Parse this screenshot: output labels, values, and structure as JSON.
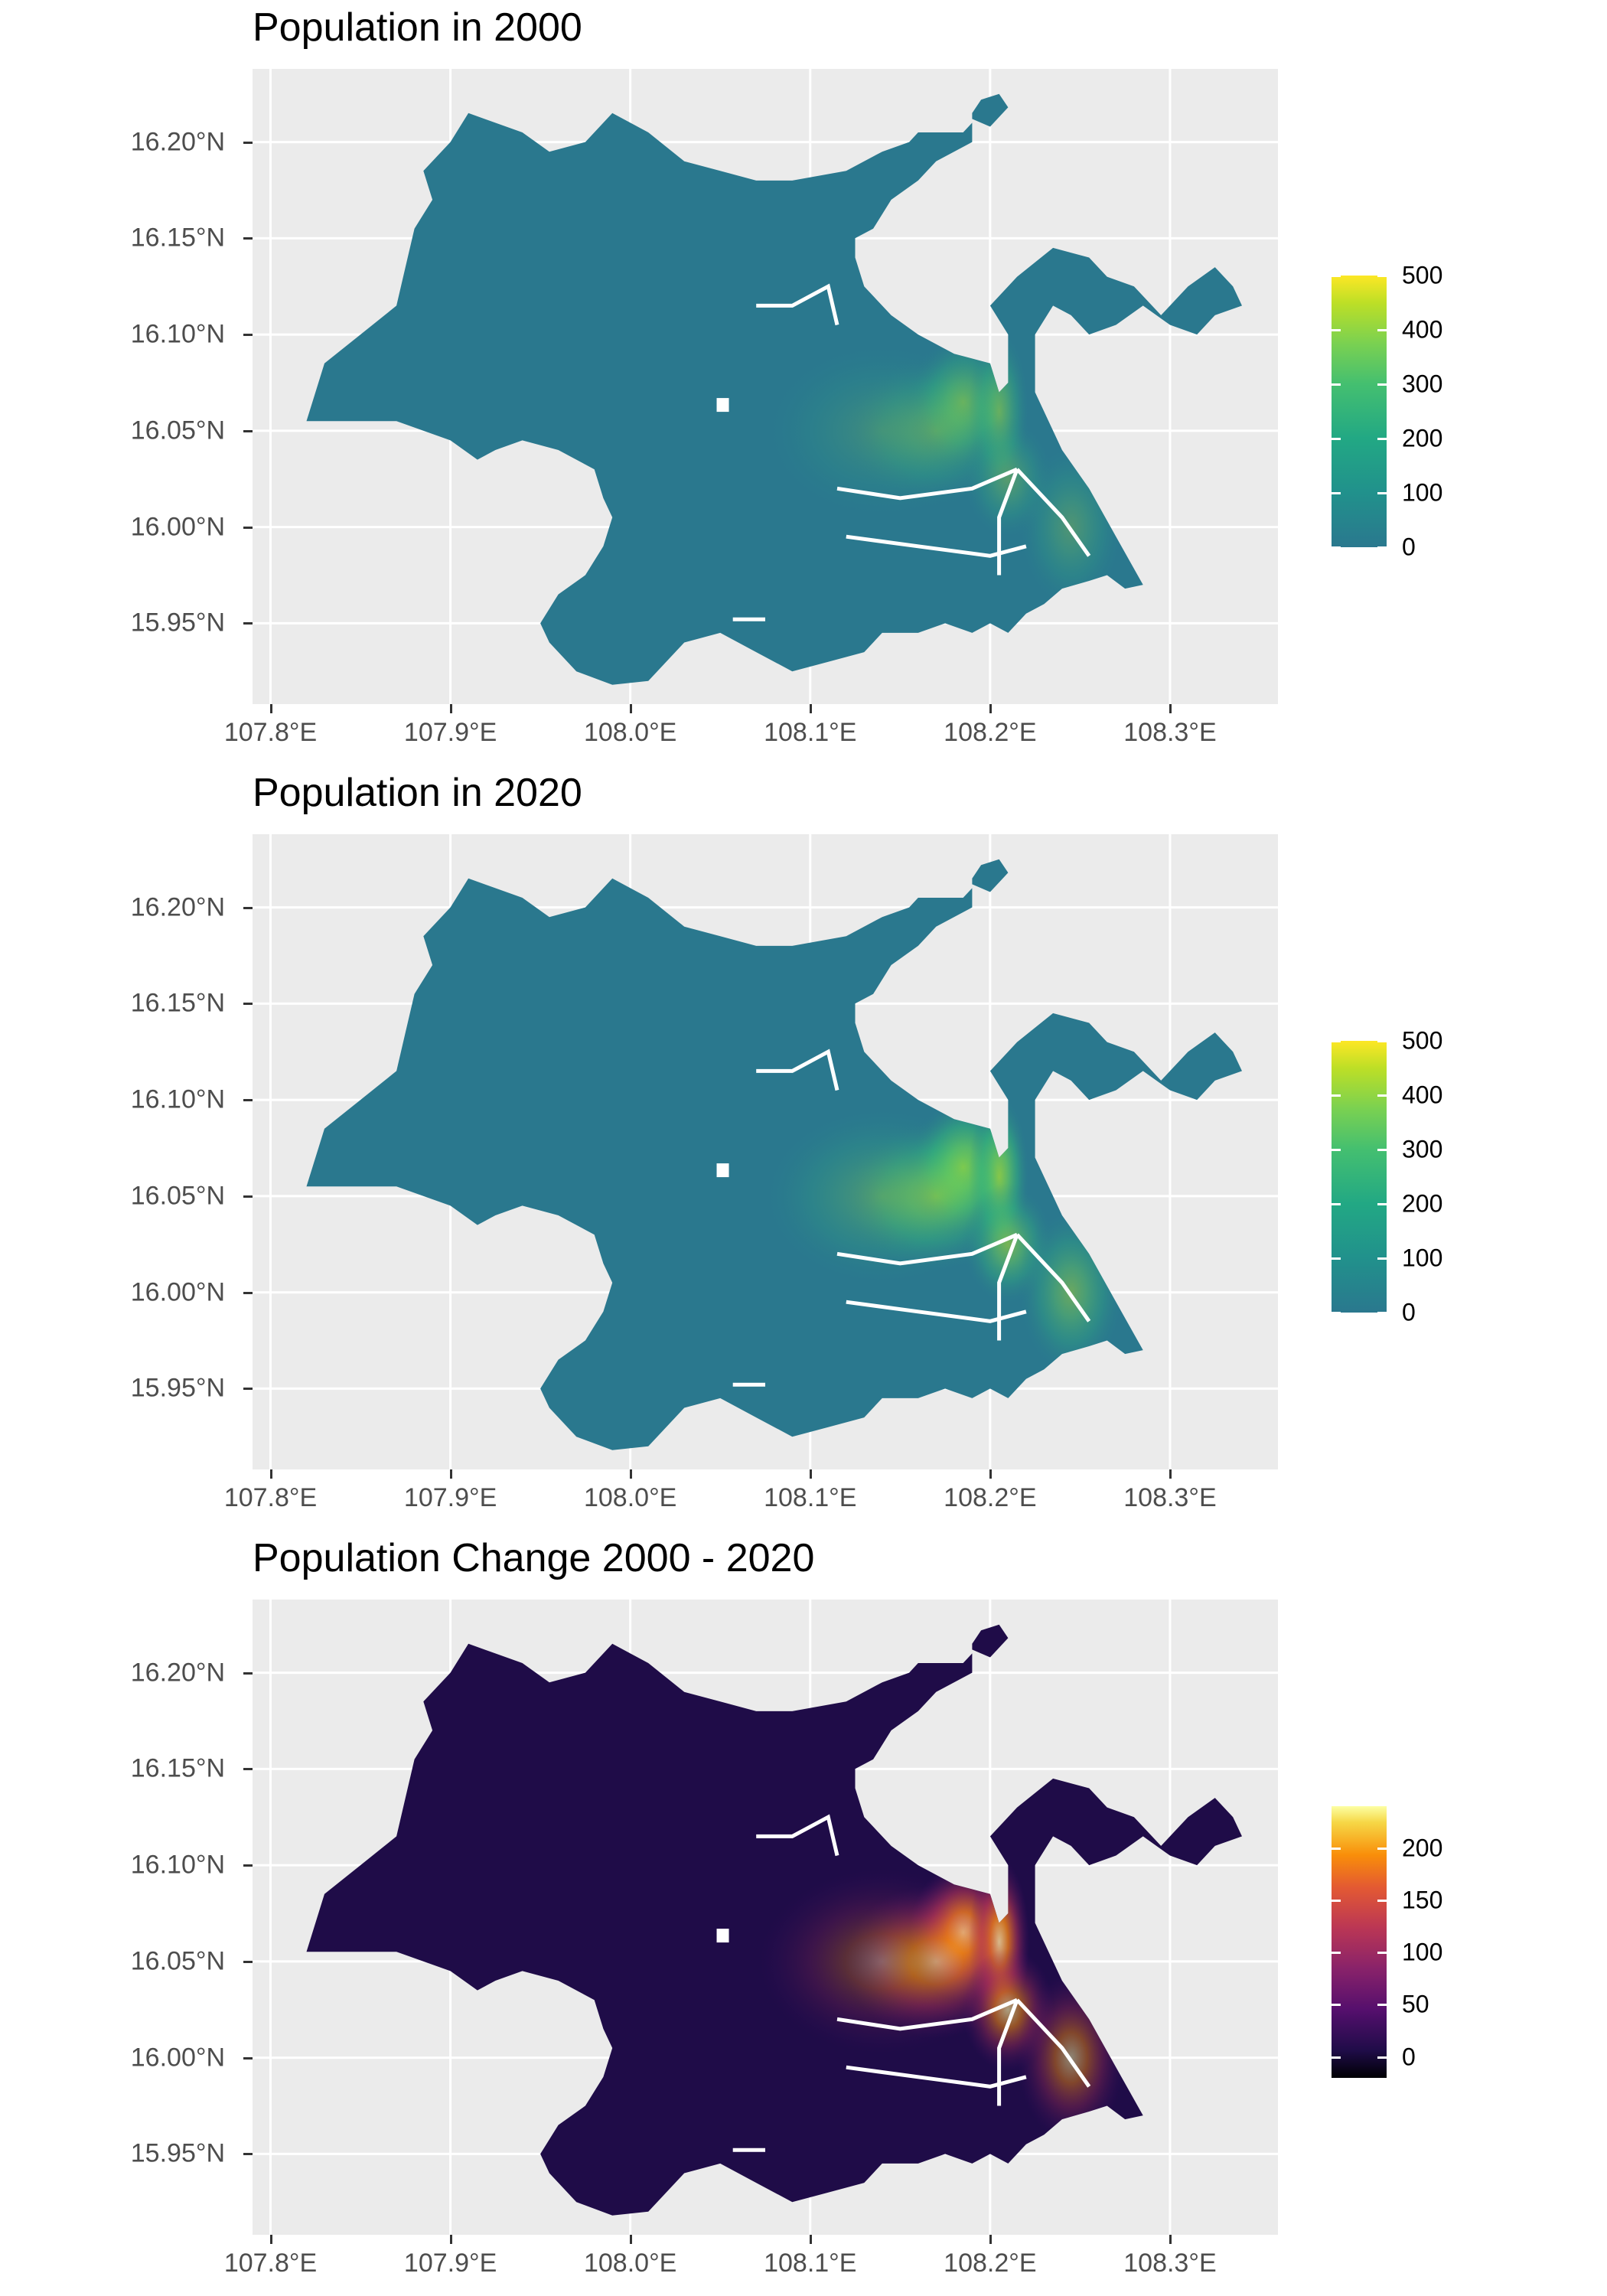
{
  "panels": [
    {
      "title": "Population in 2000",
      "palette": "viridis",
      "legend": {
        "max": 500,
        "labels": [
          "500",
          "400",
          "300",
          "200",
          "100",
          "0"
        ],
        "values": [
          500,
          400,
          300,
          200,
          100,
          0
        ]
      },
      "hotspot_intensity": 0.55,
      "colors": {
        "base": "#2a788e",
        "top": "#fde725"
      }
    },
    {
      "title": "Population in 2020",
      "palette": "viridis",
      "legend": {
        "max": 500,
        "labels": [
          "500",
          "400",
          "300",
          "200",
          "100",
          "0"
        ],
        "values": [
          500,
          400,
          300,
          200,
          100,
          0
        ]
      },
      "hotspot_intensity": 0.95,
      "colors": {
        "base": "#2a788e",
        "top": "#fde725"
      }
    },
    {
      "title": "Population Change 2000 - 2020",
      "palette": "inferno",
      "legend": {
        "min": -20,
        "max": 240,
        "labels": [
          "200",
          "150",
          "100",
          "50",
          "0"
        ],
        "values": [
          200,
          150,
          100,
          50,
          0
        ]
      },
      "hotspot_intensity": 1.0,
      "colors": {
        "base": "#1f0c48",
        "top": "#fcffa4"
      }
    }
  ],
  "axes": {
    "x_ticks": [
      "107.8°E",
      "107.9°E",
      "108.0°E",
      "108.1°E",
      "108.2°E",
      "108.3°E"
    ],
    "x_values": [
      107.8,
      107.9,
      108.0,
      108.1,
      108.2,
      108.3
    ],
    "x_range": [
      107.79,
      108.36
    ],
    "y_ticks": [
      "16.20°N",
      "16.15°N",
      "16.10°N",
      "16.05°N",
      "16.00°N",
      "15.95°N"
    ],
    "y_values": [
      16.2,
      16.15,
      16.1,
      16.05,
      16.0,
      15.95
    ],
    "y_range": [
      15.908,
      16.238
    ]
  }
}
